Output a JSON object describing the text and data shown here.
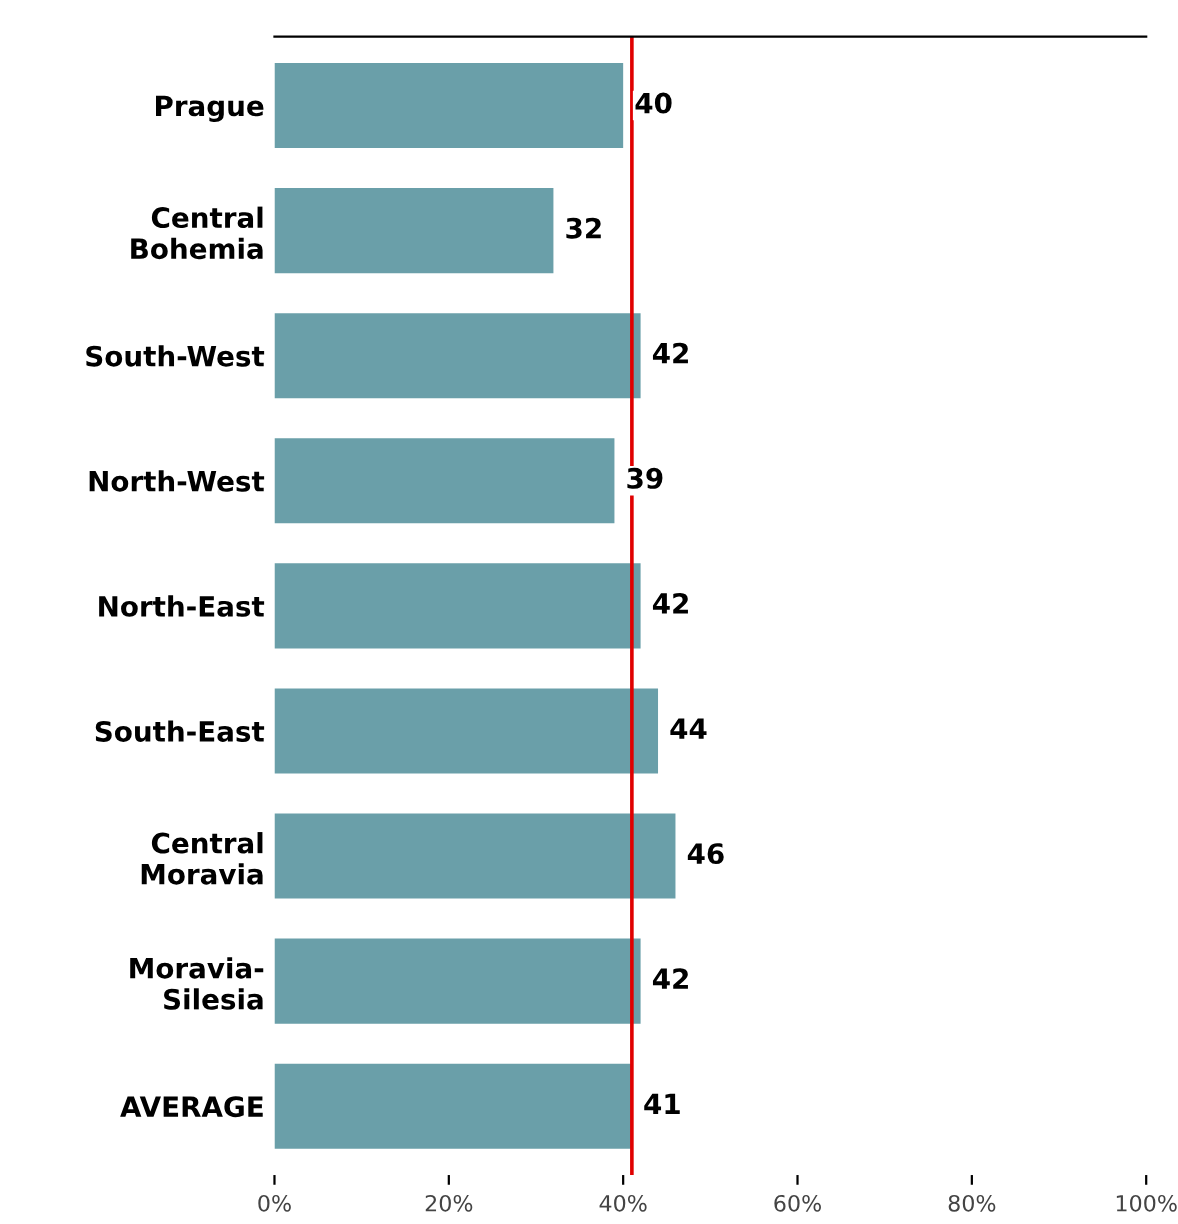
{
  "chart_data": {
    "type": "bar",
    "orientation": "horizontal",
    "categories": [
      "Prague",
      "Central\nBohemia",
      "South-West",
      "North-West",
      "North-East",
      "South-East",
      "Central\nMoravia",
      "Moravia-\nSilesia",
      "AVERAGE"
    ],
    "values": [
      40,
      32,
      42,
      39,
      42,
      44,
      46,
      42,
      41
    ],
    "color": "#6a9fa9",
    "data_labels": true,
    "xlim": [
      0,
      100
    ],
    "xticks": [
      {
        "value": 0,
        "label": "0%"
      },
      {
        "value": 20,
        "label": "20%"
      },
      {
        "value": 40,
        "label": "40%"
      },
      {
        "value": 60,
        "label": "60%"
      },
      {
        "value": 80,
        "label": "80%"
      },
      {
        "value": 100,
        "label": "100%"
      }
    ],
    "ref_lines": [
      {
        "axis": "x",
        "value": 41,
        "color": "#e00000"
      }
    ],
    "grid": false
  }
}
